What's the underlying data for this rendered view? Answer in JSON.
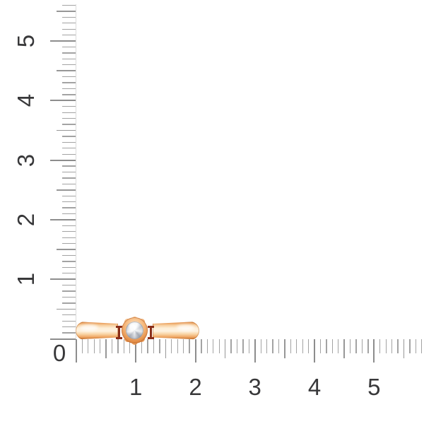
{
  "scene": {
    "background": "#ffffff",
    "description": "rose-gold ring with round white stone lying sideways, measured against centimeter rulers"
  },
  "origin": {
    "label": "0"
  },
  "vertical_ruler": {
    "labels": [
      "1",
      "2",
      "3",
      "4",
      "5"
    ],
    "tick_count": 57,
    "reading_direction": "bottom-to-top",
    "label_rotation_deg": -90
  },
  "horizontal_ruler": {
    "labels": [
      "1",
      "2",
      "3",
      "4",
      "5"
    ],
    "tick_count": 59
  },
  "ruler_style": {
    "tick_color_long": "#8d8d8d",
    "tick_color_medium": "#979797",
    "tick_color_short": "#a3a3a3",
    "label_color": "#38383a",
    "spine_color": "#dcdcdc"
  },
  "ring": {
    "object": "rose-gold-band-ring-with-white-stone",
    "approx_width_cm": 2.05,
    "approx_band_height_cm": 0.3,
    "band_gold_light": "#fdeed7",
    "band_gold_mid": "#f2b377",
    "band_gold_dark": "#c4702c",
    "stone_color": "#eef0f3",
    "stone_facet_color": "#a9aeb8",
    "accent_red": "#8a2d18",
    "petal_angles_deg": [
      -50,
      -90,
      -130,
      50,
      90,
      130
    ]
  }
}
